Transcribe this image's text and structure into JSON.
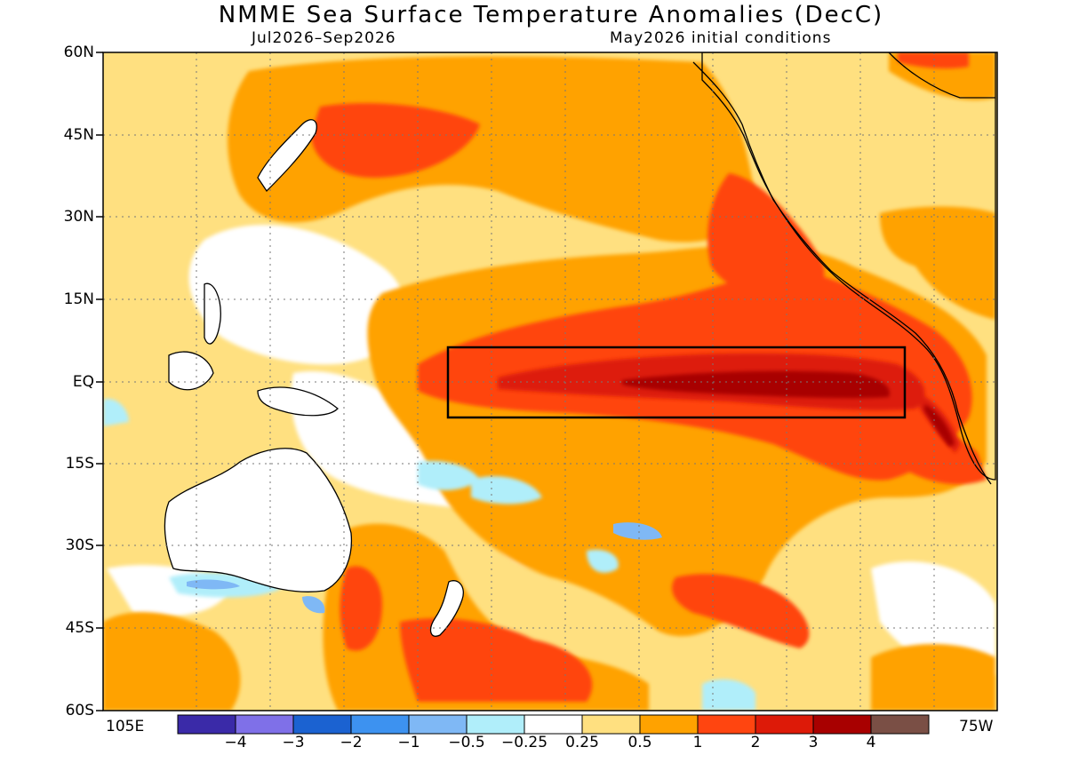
{
  "header": {
    "title": "NMME Sea Surface Temperature Anomalies (DecC)",
    "period": "Jul2026–Sep2026",
    "init": "May2026 initial conditions"
  },
  "axes": {
    "lat_labels": [
      "60N",
      "45N",
      "30N",
      "15N",
      "EQ",
      "15S",
      "30S",
      "45S",
      "60S"
    ],
    "lon_left": "105E",
    "lon_right": "75W"
  },
  "colorbar": {
    "colors": [
      "#3a2aa8",
      "#7f70e8",
      "#1b62d1",
      "#3d92f0",
      "#7fb8f5",
      "#b0eefa",
      "#ffffff",
      "#ffe080",
      "#ffa200",
      "#ff4510",
      "#dd1a08",
      "#a80000",
      "#7a4f45"
    ],
    "tick_labels": [
      "−4",
      "−3",
      "−2",
      "−1",
      "−0.5",
      "−0.25",
      "0.25",
      "0.5",
      "1",
      "2",
      "3",
      "4"
    ]
  },
  "map": {
    "box_label": "",
    "colors": {
      "warm_light": "#ffe080",
      "warm_mid": "#ffa200",
      "warm_high": "#ff4510",
      "warm_strong": "#dd1a08",
      "warm_extreme": "#a80000",
      "cool_light": "#b0eefa",
      "cool_mid": "#7fb8f5",
      "cool_strong": "#3d92f0"
    }
  }
}
